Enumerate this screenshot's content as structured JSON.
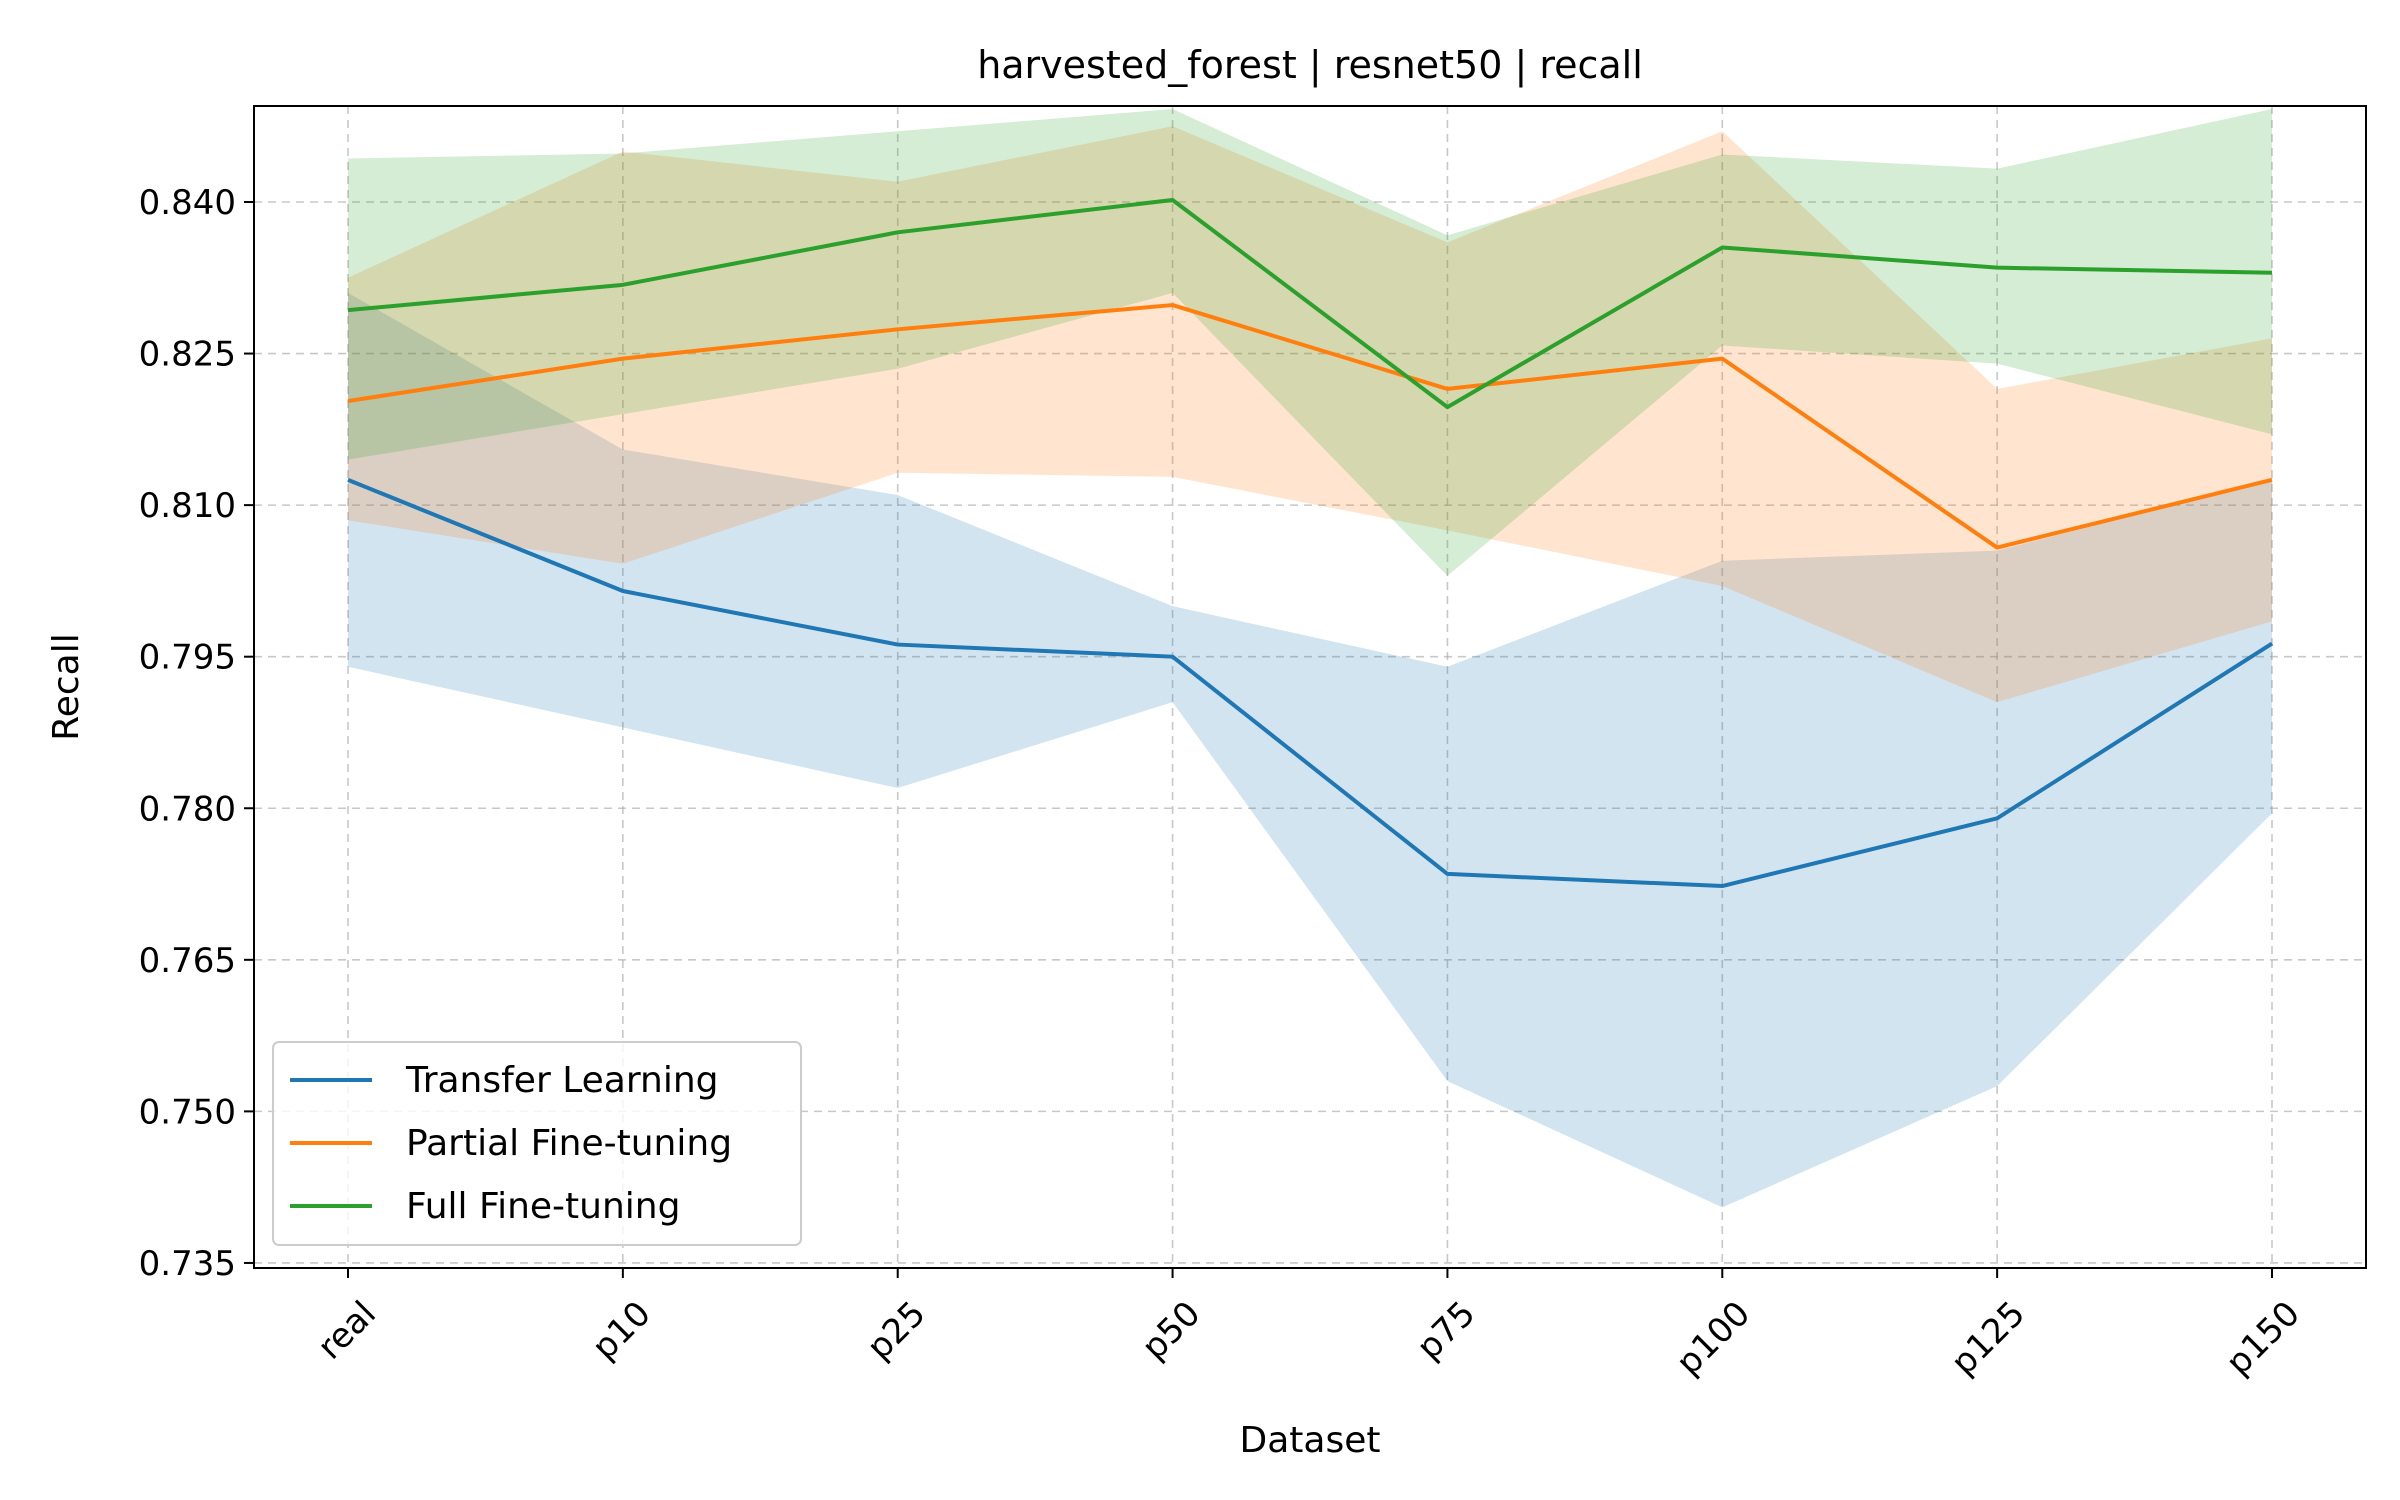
{
  "chart_data": {
    "type": "line",
    "title": "harvested_forest | resnet50 | recall",
    "xlabel": "Dataset",
    "ylabel": "Recall",
    "categories": [
      "real",
      "p10",
      "p25",
      "p50",
      "p75",
      "p100",
      "p125",
      "p150"
    ],
    "yticks": [
      "0.735",
      "0.750",
      "0.765",
      "0.780",
      "0.795",
      "0.810",
      "0.825",
      "0.840"
    ],
    "ylim": [
      0.7345,
      0.8495
    ],
    "grid": true,
    "legend_position": "lower-left",
    "series": [
      {
        "name": "Transfer Learning",
        "color": "#1f77b4",
        "values": [
          0.8125,
          0.8015,
          0.7962,
          0.795,
          0.7735,
          0.7723,
          0.779,
          0.7963
        ],
        "lower": [
          0.794,
          0.788,
          0.782,
          0.7905,
          0.753,
          0.7405,
          0.7525,
          0.7795
        ],
        "upper": [
          0.831,
          0.8155,
          0.811,
          0.8,
          0.794,
          0.8045,
          0.8055,
          0.8125
        ]
      },
      {
        "name": "Partial Fine-tuning",
        "color": "#ff7f0e",
        "values": [
          0.8203,
          0.8245,
          0.8274,
          0.8298,
          0.8215,
          0.8245,
          0.8058,
          0.8125
        ],
        "lower": [
          0.8085,
          0.8042,
          0.8132,
          0.8128,
          0.8075,
          0.802,
          0.7905,
          0.7985
        ],
        "upper": [
          0.8325,
          0.845,
          0.842,
          0.8475,
          0.836,
          0.847,
          0.8215,
          0.8265
        ]
      },
      {
        "name": "Full Fine-tuning",
        "color": "#2ca02c",
        "values": [
          0.8293,
          0.8318,
          0.837,
          0.8402,
          0.8197,
          0.8355,
          0.8335,
          0.833
        ],
        "lower": [
          0.8145,
          0.819,
          0.8235,
          0.831,
          0.803,
          0.8258,
          0.824,
          0.817
        ],
        "upper": [
          0.8443,
          0.8448,
          0.847,
          0.8492,
          0.8367,
          0.8447,
          0.8433,
          0.8492
        ]
      }
    ]
  }
}
